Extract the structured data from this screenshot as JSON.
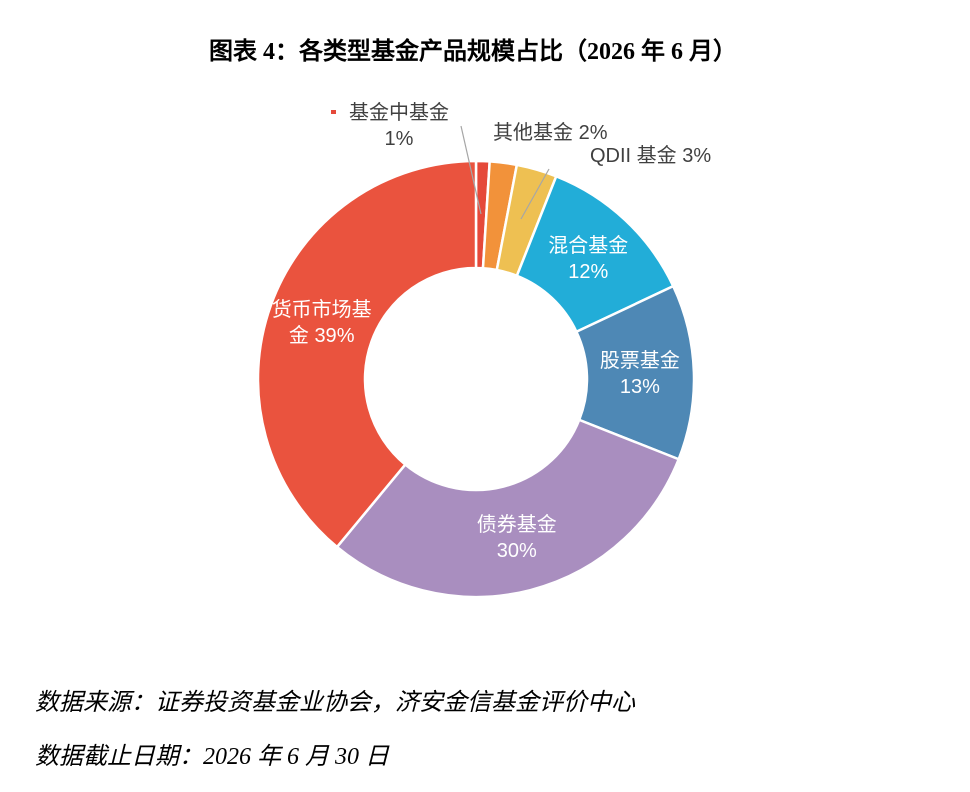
{
  "chart_data": {
    "type": "pie",
    "variant": "donut",
    "title": "图表 4：各类型基金产品规模占比（2026 年 6 月）",
    "categories": [
      "基金中基金",
      "其他基金",
      "QDII 基金",
      "混合基金",
      "股票基金",
      "债券基金",
      "货币市场基金"
    ],
    "values": [
      1,
      2,
      3,
      12,
      13,
      30,
      39
    ],
    "unit": "%",
    "colors": [
      "#E5493A",
      "#F2923A",
      "#EEC052",
      "#22ADD8",
      "#4E88B5",
      "#A98EBF",
      "#EA533E"
    ]
  },
  "footer": {
    "source": "数据来源：证券投资基金业协会，济安金信基金评价中心",
    "as_of": "数据截止日期：2026 年 6 月 30 日"
  }
}
